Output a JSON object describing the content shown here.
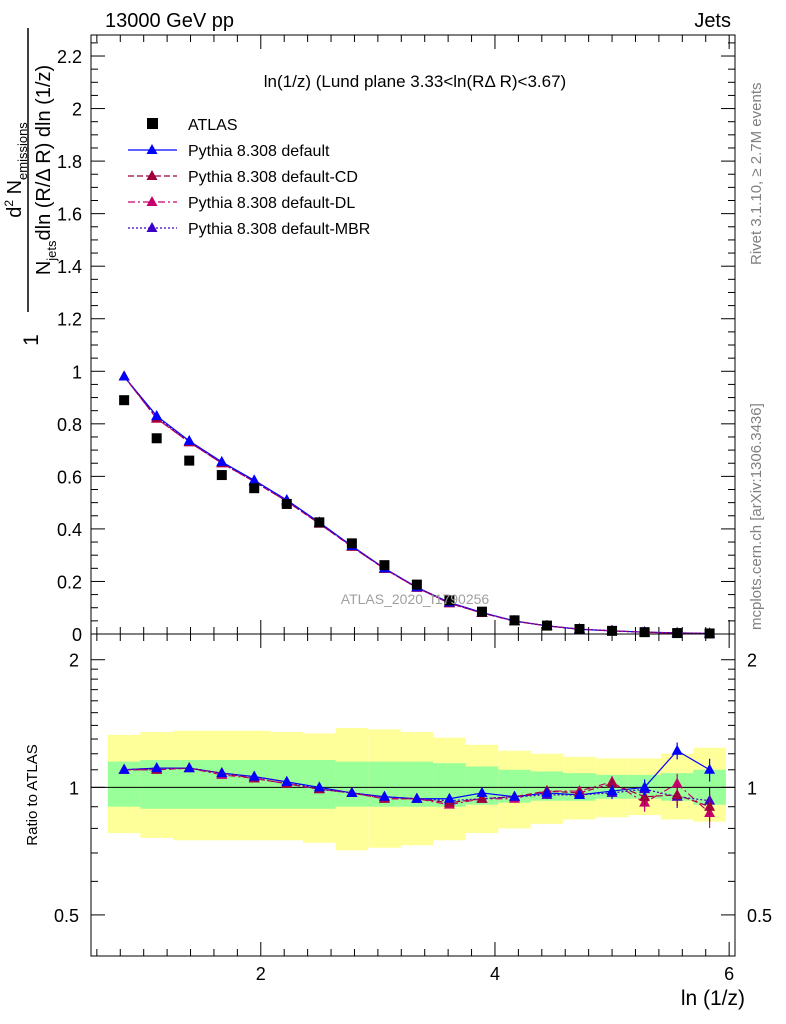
{
  "header": {
    "left": "13000 GeV pp",
    "right": "Jets"
  },
  "side_labels": {
    "rivet": "Rivet 3.1.10, ≥ 2.7M events",
    "mcplots": "mcplots.cern.ch [arXiv:1306.3436]"
  },
  "watermark": "ATLAS_2020_I1790256",
  "main_ylabel": {
    "numerator": "1",
    "denominator_prefix": "N",
    "denominator_sub": "jets",
    "denominator_rest": "dln (R/Δ R) dln (1/z)",
    "d2": "d",
    "d2_sup": "2",
    "n_emissions": "N",
    "n_emissions_sub": "emissions"
  },
  "ratio_ylabel": "Ratio to ATLAS",
  "xlabel": "ln (1/z)",
  "colors": {
    "data": "#000000",
    "default": "#0000ff",
    "cd": "#a0003c",
    "dl": "#c8006e",
    "mbr": "#3c00c8",
    "band_inner": "#99ff99",
    "band_outer": "#ffff99"
  },
  "chart_data": {
    "type": "scatter",
    "title": "ln(1/z) (Lund plane 3.33<ln(RΔ R)<3.67)",
    "xlim": [
      0.55,
      6.05
    ],
    "ylim_main": [
      0,
      2.28
    ],
    "ylim_ratio": [
      0.4,
      2.3
    ],
    "ratio_log": true,
    "x_ticks": [
      2,
      4,
      6
    ],
    "y_ticks_main": [
      0,
      0.2,
      0.4,
      0.6,
      0.8,
      1,
      1.2,
      1.4,
      1.6,
      1.8,
      2,
      2.2
    ],
    "y_ticks_ratio": [
      0.5,
      1,
      2
    ],
    "x": [
      0.833,
      1.111,
      1.389,
      1.667,
      1.944,
      2.222,
      2.5,
      2.778,
      3.056,
      3.333,
      3.611,
      3.889,
      4.167,
      4.444,
      4.722,
      5.0,
      5.278,
      5.556,
      5.833
    ],
    "legend": [
      "ATLAS",
      "Pythia 8.308 default",
      "Pythia 8.308 default-CD",
      "Pythia 8.308 default-DL",
      "Pythia 8.308 default-MBR"
    ],
    "data": {
      "name": "ATLAS",
      "values": [
        0.89,
        0.745,
        0.66,
        0.605,
        0.555,
        0.495,
        0.425,
        0.345,
        0.262,
        0.188,
        0.128,
        0.085,
        0.052,
        0.032,
        0.019,
        0.012,
        0.007,
        0.0035,
        0.002
      ]
    },
    "ratio_band": {
      "inner_low": [
        0.9,
        0.89,
        0.89,
        0.89,
        0.89,
        0.89,
        0.89,
        0.9,
        0.9,
        0.9,
        0.9,
        0.91,
        0.92,
        0.93,
        0.93,
        0.94,
        0.94,
        0.93,
        0.91
      ],
      "inner_high": [
        1.15,
        1.16,
        1.16,
        1.16,
        1.16,
        1.16,
        1.16,
        1.15,
        1.15,
        1.15,
        1.14,
        1.12,
        1.1,
        1.09,
        1.08,
        1.07,
        1.07,
        1.08,
        1.1
      ],
      "outer_low": [
        0.78,
        0.76,
        0.75,
        0.75,
        0.75,
        0.75,
        0.74,
        0.71,
        0.72,
        0.73,
        0.75,
        0.78,
        0.8,
        0.82,
        0.84,
        0.85,
        0.86,
        0.84,
        0.83
      ],
      "outer_high": [
        1.33,
        1.35,
        1.36,
        1.36,
        1.36,
        1.35,
        1.34,
        1.38,
        1.37,
        1.35,
        1.31,
        1.26,
        1.22,
        1.2,
        1.18,
        1.17,
        1.17,
        1.2,
        1.24
      ]
    },
    "series": [
      {
        "name": "Pythia 8.308 default",
        "values": [
          0.98,
          0.83,
          0.735,
          0.655,
          0.585,
          0.51,
          0.425,
          0.335,
          0.25,
          0.178,
          0.12,
          0.082,
          0.0495,
          0.031,
          0.0182,
          0.0118,
          0.007,
          0.0043,
          0.0022
        ],
        "ratio": [
          1.1,
          1.11,
          1.11,
          1.08,
          1.06,
          1.03,
          1.0,
          0.97,
          0.95,
          0.94,
          0.94,
          0.97,
          0.95,
          0.97,
          0.96,
          0.98,
          1.0,
          1.22,
          1.1
        ]
      },
      {
        "name": "Pythia 8.308 default-CD",
        "values": [
          0.98,
          0.82,
          0.73,
          0.65,
          0.58,
          0.505,
          0.42,
          0.332,
          0.248,
          0.176,
          0.117,
          0.08,
          0.049,
          0.031,
          0.0185,
          0.0122,
          0.0066,
          0.0036,
          0.0018
        ],
        "ratio": [
          1.1,
          1.1,
          1.11,
          1.08,
          1.05,
          1.02,
          0.99,
          0.97,
          0.94,
          0.94,
          0.92,
          0.94,
          0.95,
          0.98,
          0.97,
          1.02,
          0.95,
          0.96,
          0.9
        ]
      },
      {
        "name": "Pythia 8.308 default-DL",
        "values": [
          0.98,
          0.82,
          0.73,
          0.65,
          0.58,
          0.505,
          0.42,
          0.332,
          0.248,
          0.176,
          0.117,
          0.08,
          0.049,
          0.031,
          0.0185,
          0.0124,
          0.0065,
          0.0036,
          0.0017
        ],
        "ratio": [
          1.1,
          1.1,
          1.11,
          1.07,
          1.05,
          1.02,
          0.99,
          0.97,
          0.94,
          0.94,
          0.91,
          0.94,
          0.94,
          0.98,
          0.98,
          1.03,
          0.92,
          1.02,
          0.87
        ]
      },
      {
        "name": "Pythia 8.308 default-MBR",
        "values": [
          0.98,
          0.825,
          0.733,
          0.652,
          0.582,
          0.507,
          0.422,
          0.333,
          0.249,
          0.177,
          0.118,
          0.081,
          0.049,
          0.031,
          0.0183,
          0.012,
          0.0068,
          0.0035,
          0.0018
        ],
        "ratio": [
          1.1,
          1.11,
          1.11,
          1.08,
          1.06,
          1.03,
          0.99,
          0.97,
          0.95,
          0.94,
          0.93,
          0.94,
          0.95,
          0.96,
          0.96,
          0.97,
          0.99,
          0.95,
          0.93
        ]
      }
    ]
  }
}
